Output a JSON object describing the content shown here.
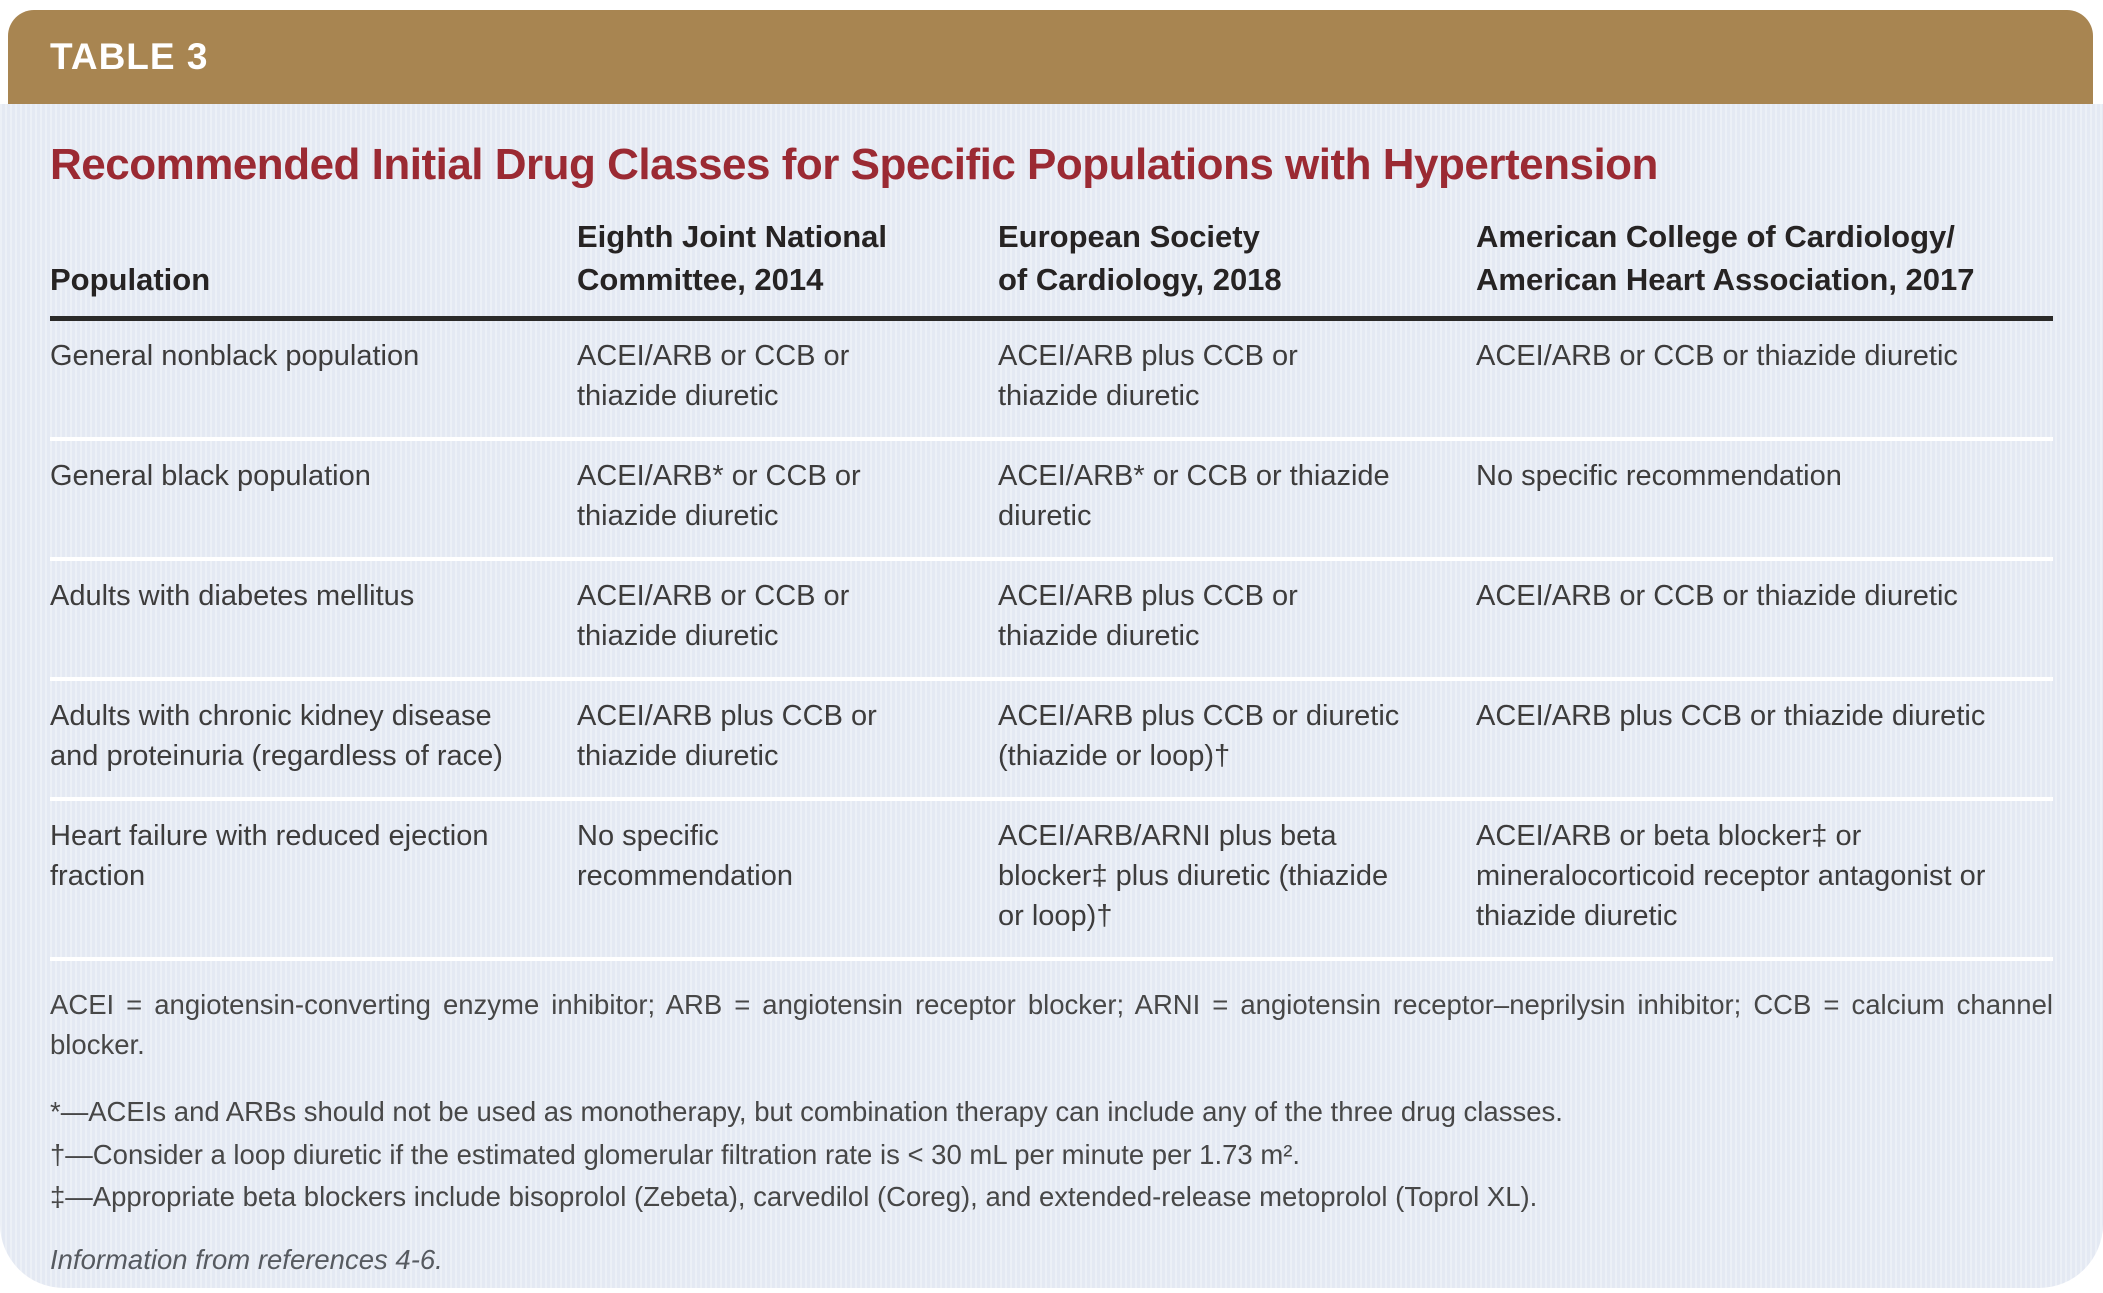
{
  "header_bar": {
    "label": "TABLE 3"
  },
  "title": "Recommended Initial Drug Classes for Specific Populations with Hypertension",
  "table": {
    "columns": [
      {
        "text": "Population"
      },
      {
        "text": "Eighth Joint National\nCommittee, 2014"
      },
      {
        "text": "European Society\nof Cardiology, 2018"
      },
      {
        "text": "American College of Cardiology/\nAmerican Heart Association, 2017"
      }
    ],
    "rows": [
      {
        "population": "General nonblack population",
        "jnc": "ACEI/ARB or CCB or thiazide diuretic",
        "esc": "ACEI/ARB plus CCB or thiazide diuretic",
        "acc": "ACEI/ARB or CCB or thiazide diuretic"
      },
      {
        "population": "General black population",
        "jnc": "ACEI/ARB* or CCB or thiazide diuretic",
        "esc": "ACEI/ARB* or CCB or thiazide diuretic",
        "acc": "No specific recommendation"
      },
      {
        "population": "Adults with diabetes mellitus",
        "jnc": "ACEI/ARB or CCB or thiazide diuretic",
        "esc": "ACEI/ARB plus CCB or thiazide diuretic",
        "acc": "ACEI/ARB or CCB or thiazide diuretic"
      },
      {
        "population": "Adults with chronic kidney disease and proteinuria (regardless of race)",
        "jnc": "ACEI/ARB plus CCB or thiazide diuretic",
        "esc": "ACEI/ARB plus CCB or diuretic (thiazide or loop)†",
        "acc": "ACEI/ARB plus CCB or thiazide diuretic"
      },
      {
        "population": "Heart failure with reduced ejection fraction",
        "jnc": "No specific recommendation",
        "esc": "ACEI/ARB/ARNI plus beta blocker‡ plus diuretic (thiazide or loop)†",
        "acc": "ACEI/ARB or beta blocker‡ or mineralocorticoid receptor antagonist or thiazide diuretic"
      }
    ]
  },
  "footnotes": {
    "abbreviations": "ACEI = angiotensin-converting enzyme inhibitor; ARB = angiotensin receptor blocker; ARNI = angiotensin receptor–neprilysin inhibitor; CCB = calcium channel blocker.",
    "notes": [
      "*—ACEIs and ARBs should not be used as monotherapy, but combination therapy can include any of the three drug classes.",
      "†—Consider a loop diuretic if the estimated glomerular filtration rate is < 30 mL per minute per 1.73 m².",
      "‡—Appropriate beta blockers include bisoprolol (Zebeta), carvedilol (Coreg), and extended-release metoprolol (Toprol XL)."
    ],
    "source": "Information from references 4-6."
  },
  "colors": {
    "header_bar": "#a88551",
    "title": "#9b2a33",
    "card_background": "#e4e9f3",
    "body_text": "#3d3c3c",
    "header_rule": "#2b2a29",
    "row_separator": "#ffffff"
  }
}
